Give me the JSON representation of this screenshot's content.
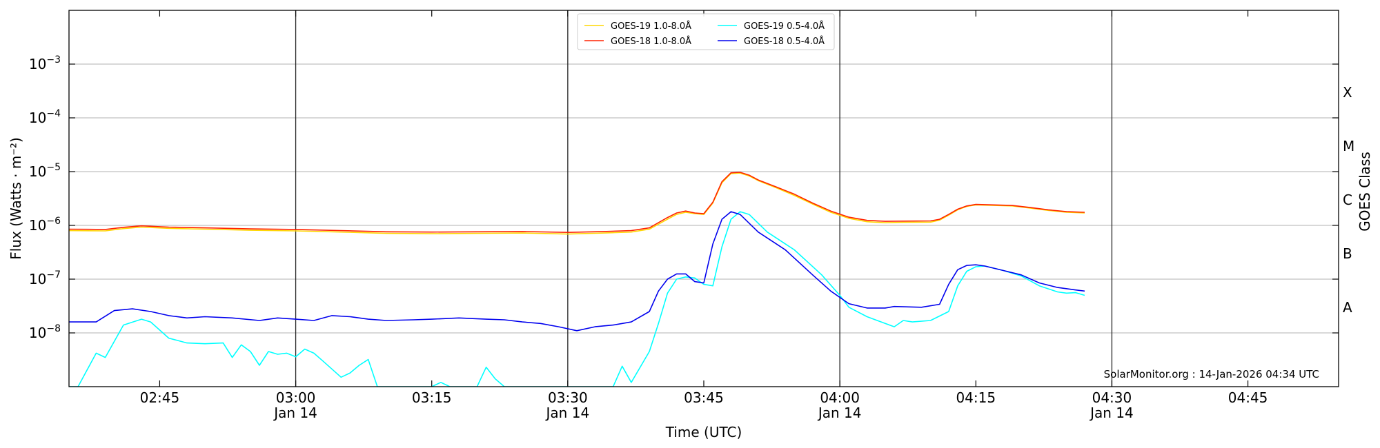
{
  "chart_data": {
    "type": "line",
    "xlabel": "Time (UTC)",
    "ylabel": "Flux (Watts · m⁻²)",
    "right_axis_label": "GOES Class",
    "credit": "SolarMonitor.org : 14-Jan-2026 04:34 UTC",
    "y_scale": "log",
    "ylim": [
      1e-09,
      0.01
    ],
    "xlim": [
      "02:35",
      "04:55"
    ],
    "grid": "horizontal gridlines at each decade; vertical lines at half-hour marks",
    "legend_position": "top-center",
    "x_ticks": [
      {
        "time": "02:45",
        "label": "02:45",
        "sublabel": ""
      },
      {
        "time": "03:00",
        "label": "03:00",
        "sublabel": "Jan 14"
      },
      {
        "time": "03:15",
        "label": "03:15",
        "sublabel": ""
      },
      {
        "time": "03:30",
        "label": "03:30",
        "sublabel": "Jan 14"
      },
      {
        "time": "03:45",
        "label": "03:45",
        "sublabel": ""
      },
      {
        "time": "04:00",
        "label": "04:00",
        "sublabel": "Jan 14"
      },
      {
        "time": "04:15",
        "label": "04:15",
        "sublabel": ""
      },
      {
        "time": "04:30",
        "label": "04:30",
        "sublabel": "Jan 14"
      },
      {
        "time": "04:45",
        "label": "04:45",
        "sublabel": ""
      }
    ],
    "vertical_lines": [
      "03:00",
      "03:30",
      "04:00",
      "04:30"
    ],
    "y_ticks": [
      {
        "value": 1e-08,
        "base": "10",
        "exp": "−8"
      },
      {
        "value": 1e-07,
        "base": "10",
        "exp": "−7"
      },
      {
        "value": 1e-06,
        "base": "10",
        "exp": "−6"
      },
      {
        "value": 1e-05,
        "base": "10",
        "exp": "−5"
      },
      {
        "value": 0.0001,
        "base": "10",
        "exp": "−4"
      },
      {
        "value": 0.001,
        "base": "10",
        "exp": "−3"
      }
    ],
    "goes_classes": [
      {
        "label": "A",
        "value": 3e-08
      },
      {
        "label": "B",
        "value": 3e-07
      },
      {
        "label": "C",
        "value": 3e-06
      },
      {
        "label": "M",
        "value": 3e-05
      },
      {
        "label": "X",
        "value": 0.0003
      }
    ],
    "series": [
      {
        "name": "GOES-19 1.0-8.0Å",
        "color": "#FFD700",
        "points": [
          [
            "02:35",
            8e-07
          ],
          [
            "02:39",
            7.9e-07
          ],
          [
            "02:41",
            8.7e-07
          ],
          [
            "02:43",
            9.3e-07
          ],
          [
            "02:46",
            8.8e-07
          ],
          [
            "02:50",
            8.5e-07
          ],
          [
            "02:55",
            8.1e-07
          ],
          [
            "03:00",
            7.9e-07
          ],
          [
            "03:05",
            7.5e-07
          ],
          [
            "03:10",
            7.1e-07
          ],
          [
            "03:15",
            7e-07
          ],
          [
            "03:20",
            7.1e-07
          ],
          [
            "03:25",
            7.2e-07
          ],
          [
            "03:30",
            6.9e-07
          ],
          [
            "03:34",
            7.2e-07
          ],
          [
            "03:37",
            7.5e-07
          ],
          [
            "03:39",
            8.5e-07
          ],
          [
            "03:41",
            1.3e-06
          ],
          [
            "03:42",
            1.6e-06
          ],
          [
            "03:43",
            1.75e-06
          ],
          [
            "03:44",
            1.65e-06
          ],
          [
            "03:45",
            1.6e-06
          ],
          [
            "03:46",
            2.6e-06
          ],
          [
            "03:47",
            6.2e-06
          ],
          [
            "03:48",
            9.2e-06
          ],
          [
            "03:49",
            9.4e-06
          ],
          [
            "03:50",
            8.3e-06
          ],
          [
            "03:51",
            6.8e-06
          ],
          [
            "03:53",
            5e-06
          ],
          [
            "03:55",
            3.6e-06
          ],
          [
            "03:57",
            2.5e-06
          ],
          [
            "03:59",
            1.75e-06
          ],
          [
            "04:01",
            1.35e-06
          ],
          [
            "04:03",
            1.17e-06
          ],
          [
            "04:05",
            1.12e-06
          ],
          [
            "04:07",
            1.14e-06
          ],
          [
            "04:10",
            1.15e-06
          ],
          [
            "04:11",
            1.25e-06
          ],
          [
            "04:12",
            1.55e-06
          ],
          [
            "04:13",
            1.95e-06
          ],
          [
            "04:14",
            2.25e-06
          ],
          [
            "04:15",
            2.4e-06
          ],
          [
            "04:17",
            2.35e-06
          ],
          [
            "04:19",
            2.3e-06
          ],
          [
            "04:21",
            2.1e-06
          ],
          [
            "04:23",
            1.9e-06
          ],
          [
            "04:25",
            1.75e-06
          ],
          [
            "04:27",
            1.7e-06
          ]
        ]
      },
      {
        "name": "GOES-18 1.0-8.0Å",
        "color": "#FF2200",
        "points": [
          [
            "02:35",
            8.5e-07
          ],
          [
            "02:39",
            8.4e-07
          ],
          [
            "02:41",
            9.2e-07
          ],
          [
            "02:43",
            9.8e-07
          ],
          [
            "02:46",
            9.3e-07
          ],
          [
            "02:50",
            9e-07
          ],
          [
            "02:55",
            8.6e-07
          ],
          [
            "03:00",
            8.4e-07
          ],
          [
            "03:05",
            8e-07
          ],
          [
            "03:10",
            7.6e-07
          ],
          [
            "03:15",
            7.5e-07
          ],
          [
            "03:20",
            7.6e-07
          ],
          [
            "03:25",
            7.7e-07
          ],
          [
            "03:30",
            7.4e-07
          ],
          [
            "03:34",
            7.7e-07
          ],
          [
            "03:37",
            8e-07
          ],
          [
            "03:39",
            9e-07
          ],
          [
            "03:41",
            1.4e-06
          ],
          [
            "03:42",
            1.7e-06
          ],
          [
            "03:43",
            1.85e-06
          ],
          [
            "03:44",
            1.7e-06
          ],
          [
            "03:45",
            1.65e-06
          ],
          [
            "03:46",
            2.7e-06
          ],
          [
            "03:47",
            6.5e-06
          ],
          [
            "03:48",
            9.5e-06
          ],
          [
            "03:49",
            9.7e-06
          ],
          [
            "03:50",
            8.6e-06
          ],
          [
            "03:51",
            7e-06
          ],
          [
            "03:53",
            5.2e-06
          ],
          [
            "03:55",
            3.8e-06
          ],
          [
            "03:57",
            2.6e-06
          ],
          [
            "03:59",
            1.85e-06
          ],
          [
            "04:01",
            1.42e-06
          ],
          [
            "04:03",
            1.24e-06
          ],
          [
            "04:05",
            1.19e-06
          ],
          [
            "04:07",
            1.2e-06
          ],
          [
            "04:10",
            1.21e-06
          ],
          [
            "04:11",
            1.3e-06
          ],
          [
            "04:12",
            1.6e-06
          ],
          [
            "04:13",
            2e-06
          ],
          [
            "04:14",
            2.3e-06
          ],
          [
            "04:15",
            2.45e-06
          ],
          [
            "04:17",
            2.4e-06
          ],
          [
            "04:19",
            2.35e-06
          ],
          [
            "04:21",
            2.15e-06
          ],
          [
            "04:23",
            1.95e-06
          ],
          [
            "04:25",
            1.8e-06
          ],
          [
            "04:27",
            1.75e-06
          ]
        ]
      },
      {
        "name": "GOES-19 0.5-4.0Å",
        "color": "#00FFFF",
        "points": [
          [
            "02:35",
            1e-09
          ],
          [
            "02:36",
            1e-09
          ],
          [
            "02:38",
            4.2e-09
          ],
          [
            "02:39",
            3.5e-09
          ],
          [
            "02:41",
            1.4e-08
          ],
          [
            "02:43",
            1.8e-08
          ],
          [
            "02:44",
            1.6e-08
          ],
          [
            "02:46",
            8e-09
          ],
          [
            "02:48",
            6.5e-09
          ],
          [
            "02:50",
            6.3e-09
          ],
          [
            "02:52",
            6.5e-09
          ],
          [
            "02:53",
            3.5e-09
          ],
          [
            "02:54",
            6e-09
          ],
          [
            "02:55",
            4.5e-09
          ],
          [
            "02:56",
            2.5e-09
          ],
          [
            "02:57",
            4.5e-09
          ],
          [
            "02:58",
            4e-09
          ],
          [
            "02:59",
            4.2e-09
          ],
          [
            "03:00",
            3.6e-09
          ],
          [
            "03:01",
            5e-09
          ],
          [
            "03:02",
            4.2e-09
          ],
          [
            "03:03",
            3e-09
          ],
          [
            "03:05",
            1.5e-09
          ],
          [
            "03:06",
            1.8e-09
          ],
          [
            "03:07",
            2.5e-09
          ],
          [
            "03:08",
            3.2e-09
          ],
          [
            "03:09",
            1e-09
          ],
          [
            "03:15",
            1e-09
          ],
          [
            "03:16",
            1.2e-09
          ],
          [
            "03:17",
            1e-09
          ],
          [
            "03:20",
            1e-09
          ],
          [
            "03:21",
            2.3e-09
          ],
          [
            "03:22",
            1.4e-09
          ],
          [
            "03:23",
            1e-09
          ],
          [
            "03:35",
            1e-09
          ],
          [
            "03:36",
            2.4e-09
          ],
          [
            "03:37",
            1.2e-09
          ],
          [
            "03:39",
            4.5e-09
          ],
          [
            "03:40",
            1.5e-08
          ],
          [
            "03:41",
            5.5e-08
          ],
          [
            "03:42",
            1e-07
          ],
          [
            "03:43",
            1.1e-07
          ],
          [
            "03:44",
            1.05e-07
          ],
          [
            "03:45",
            8e-08
          ],
          [
            "03:46",
            7.5e-08
          ],
          [
            "03:47",
            4e-07
          ],
          [
            "03:48",
            1.3e-06
          ],
          [
            "03:49",
            1.8e-06
          ],
          [
            "03:50",
            1.6e-06
          ],
          [
            "03:52",
            7.5e-07
          ],
          [
            "03:55",
            3.5e-07
          ],
          [
            "03:58",
            1.2e-07
          ],
          [
            "04:00",
            5e-08
          ],
          [
            "04:01",
            3e-08
          ],
          [
            "04:03",
            2e-08
          ],
          [
            "04:06",
            1.3e-08
          ],
          [
            "04:07",
            1.7e-08
          ],
          [
            "04:08",
            1.6e-08
          ],
          [
            "04:10",
            1.7e-08
          ],
          [
            "04:12",
            2.5e-08
          ],
          [
            "04:13",
            7.5e-08
          ],
          [
            "04:14",
            1.4e-07
          ],
          [
            "04:15",
            1.7e-07
          ],
          [
            "04:16",
            1.75e-07
          ],
          [
            "04:18",
            1.45e-07
          ],
          [
            "04:20",
            1.15e-07
          ],
          [
            "04:22",
            7.5e-08
          ],
          [
            "04:24",
            5.8e-08
          ],
          [
            "04:25",
            5.5e-08
          ],
          [
            "04:26",
            5.6e-08
          ],
          [
            "04:27",
            5e-08
          ]
        ]
      },
      {
        "name": "GOES-18 0.5-4.0Å",
        "color": "#0000EE",
        "points": [
          [
            "02:35",
            1.6e-08
          ],
          [
            "02:38",
            1.6e-08
          ],
          [
            "02:40",
            2.6e-08
          ],
          [
            "02:42",
            2.8e-08
          ],
          [
            "02:44",
            2.5e-08
          ],
          [
            "02:46",
            2.1e-08
          ],
          [
            "02:48",
            1.9e-08
          ],
          [
            "02:50",
            2e-08
          ],
          [
            "02:53",
            1.9e-08
          ],
          [
            "02:56",
            1.7e-08
          ],
          [
            "02:58",
            1.9e-08
          ],
          [
            "03:00",
            1.8e-08
          ],
          [
            "03:02",
            1.7e-08
          ],
          [
            "03:04",
            2.1e-08
          ],
          [
            "03:06",
            2e-08
          ],
          [
            "03:08",
            1.8e-08
          ],
          [
            "03:10",
            1.7e-08
          ],
          [
            "03:13",
            1.75e-08
          ],
          [
            "03:15",
            1.8e-08
          ],
          [
            "03:18",
            1.9e-08
          ],
          [
            "03:21",
            1.8e-08
          ],
          [
            "03:23",
            1.75e-08
          ],
          [
            "03:25",
            1.6e-08
          ],
          [
            "03:27",
            1.5e-08
          ],
          [
            "03:29",
            1.3e-08
          ],
          [
            "03:31",
            1.1e-08
          ],
          [
            "03:33",
            1.3e-08
          ],
          [
            "03:35",
            1.4e-08
          ],
          [
            "03:37",
            1.6e-08
          ],
          [
            "03:39",
            2.5e-08
          ],
          [
            "03:40",
            6e-08
          ],
          [
            "03:41",
            1e-07
          ],
          [
            "03:42",
            1.25e-07
          ],
          [
            "03:43",
            1.25e-07
          ],
          [
            "03:44",
            9e-08
          ],
          [
            "03:45",
            8.5e-08
          ],
          [
            "03:46",
            4.5e-07
          ],
          [
            "03:47",
            1.3e-06
          ],
          [
            "03:48",
            1.8e-06
          ],
          [
            "03:49",
            1.6e-06
          ],
          [
            "03:51",
            7.5e-07
          ],
          [
            "03:54",
            3.5e-07
          ],
          [
            "03:57",
            1.2e-07
          ],
          [
            "03:59",
            6e-08
          ],
          [
            "04:01",
            3.5e-08
          ],
          [
            "04:03",
            2.9e-08
          ],
          [
            "04:05",
            2.9e-08
          ],
          [
            "04:06",
            3.1e-08
          ],
          [
            "04:09",
            3e-08
          ],
          [
            "04:11",
            3.4e-08
          ],
          [
            "04:12",
            8e-08
          ],
          [
            "04:13",
            1.5e-07
          ],
          [
            "04:14",
            1.8e-07
          ],
          [
            "04:15",
            1.85e-07
          ],
          [
            "04:16",
            1.75e-07
          ],
          [
            "04:18",
            1.45e-07
          ],
          [
            "04:20",
            1.2e-07
          ],
          [
            "04:22",
            8.5e-08
          ],
          [
            "04:24",
            7e-08
          ],
          [
            "04:26",
            6.3e-08
          ],
          [
            "04:27",
            6e-08
          ]
        ]
      }
    ]
  }
}
